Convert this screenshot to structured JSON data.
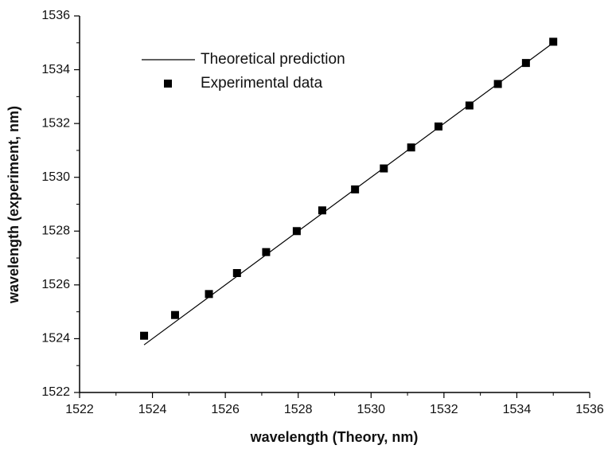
{
  "chart_data": {
    "type": "scatter",
    "x_label": "wavelength (Theory, nm)",
    "y_label": "wavelength (experiment, nm)",
    "xlim": [
      1522,
      1536
    ],
    "ylim": [
      1522,
      1536
    ],
    "xticks": [
      1522,
      1524,
      1526,
      1528,
      1530,
      1532,
      1534,
      1536
    ],
    "yticks": [
      1522,
      1524,
      1526,
      1528,
      1530,
      1532,
      1534,
      1536
    ],
    "series": [
      {
        "name": "Theoretical prediction",
        "type": "line",
        "color": "#000000",
        "x": [
          1523.77,
          1535.0
        ],
        "values": [
          1523.77,
          1535.0
        ]
      },
      {
        "name": "Experimental data",
        "type": "scatter",
        "color": "#000000",
        "x": [
          1523.77,
          1524.62,
          1525.55,
          1526.32,
          1527.12,
          1527.96,
          1528.66,
          1529.56,
          1530.35,
          1531.1,
          1531.85,
          1532.7,
          1533.48,
          1534.25,
          1535.0
        ],
        "values": [
          1524.11,
          1524.88,
          1525.66,
          1526.44,
          1527.22,
          1528.0,
          1528.77,
          1529.55,
          1530.33,
          1531.11,
          1531.89,
          1532.67,
          1533.47,
          1534.25,
          1535.04
        ]
      }
    ]
  }
}
